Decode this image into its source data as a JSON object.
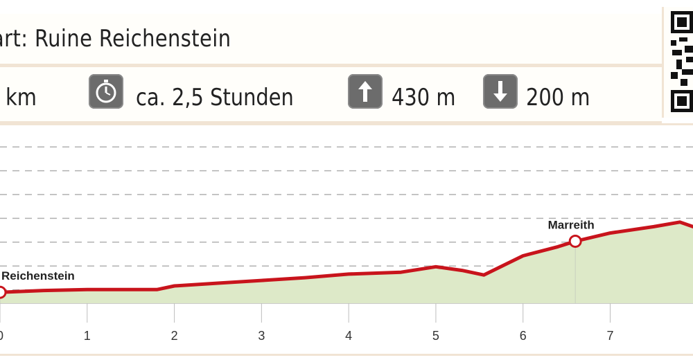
{
  "header": {
    "start_text": "art: Ruine Reichenstein"
  },
  "stats": {
    "distance": "km",
    "duration": "ca. 2,5 Stunden",
    "ascent": "430 m",
    "descent": "200 m"
  },
  "icons": {
    "duration": "stopwatch-icon",
    "ascent": "arrow-up-icon",
    "descent": "arrow-down-icon",
    "qr": "qr-code-icon"
  },
  "colors": {
    "line": "#c8141c",
    "fill": "#dde9c8",
    "grid": "#b0b0b0",
    "icon_bg": "#6c6c6c",
    "separator": "#f1e4d4"
  },
  "chart_data": {
    "type": "area",
    "title": "",
    "xlabel": "",
    "ylabel": "",
    "xlim": [
      0,
      7.95
    ],
    "ylim": [
      0,
      9
    ],
    "x_ticks": [
      "0",
      "1",
      "2",
      "3",
      "4",
      "5",
      "6",
      "7"
    ],
    "gridlines": 8,
    "grid": true,
    "series": [
      {
        "x": [
          0,
          0.5,
          1,
          1.5,
          1.8,
          2,
          2.5,
          3,
          3.5,
          4,
          4.6,
          5,
          5.3,
          5.55,
          6,
          6.4,
          6.6,
          7,
          7.5,
          7.8,
          7.95
        ],
        "y": [
          0.6,
          0.7,
          0.75,
          0.75,
          0.75,
          0.95,
          1.1,
          1.25,
          1.4,
          1.6,
          1.7,
          2.0,
          1.8,
          1.55,
          2.6,
          3.1,
          3.4,
          3.85,
          4.2,
          4.45,
          4.2
        ]
      }
    ],
    "waypoints": [
      {
        "label": "Reichenstein",
        "x": 0,
        "y": 0.6
      },
      {
        "label": "Marreith",
        "x": 6.6,
        "y": 3.4
      }
    ]
  }
}
